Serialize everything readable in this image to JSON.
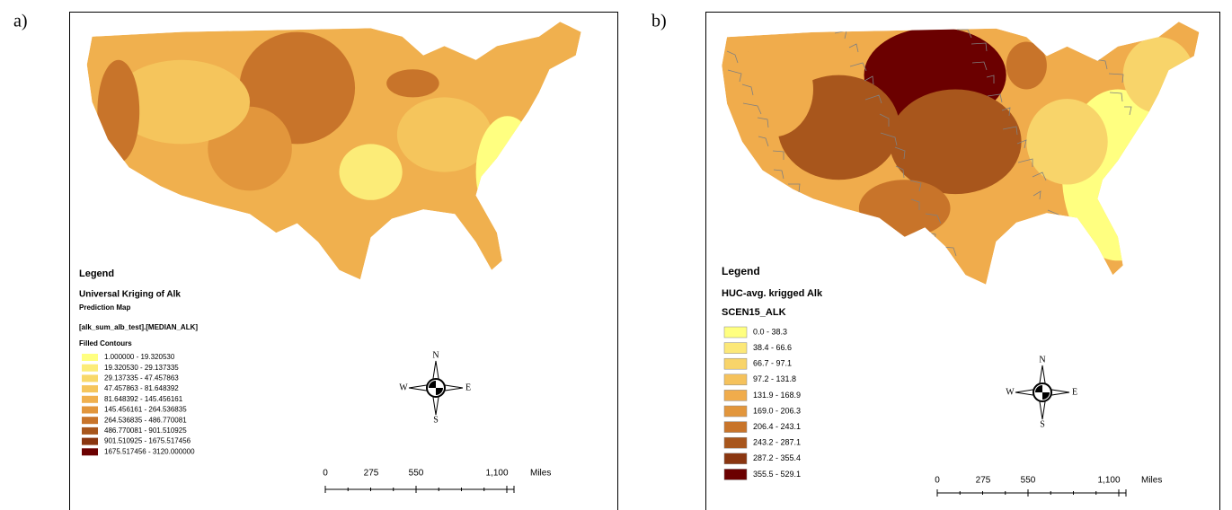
{
  "panels": [
    {
      "label": "a)",
      "legend": {
        "title": "Legend",
        "layer": "Universal Kriging of Alk",
        "subtitle": "Prediction Map",
        "field": "[alk_sum_alb_test].[MEDIAN_ALK]",
        "group": "Filled Contours",
        "classes": [
          {
            "label": "1.000000 - 19.320530",
            "color": "#ffff80"
          },
          {
            "label": "19.320530 - 29.137335",
            "color": "#fcec78"
          },
          {
            "label": "29.137335 - 47.457863",
            "color": "#f8d86a"
          },
          {
            "label": "47.457863 - 81.648392",
            "color": "#f5c55c"
          },
          {
            "label": "81.648392 - 145.456161",
            "color": "#f0b04e"
          },
          {
            "label": "145.456161 - 264.536835",
            "color": "#e2963c"
          },
          {
            "label": "264.536835 - 486.770081",
            "color": "#c8742a"
          },
          {
            "label": "486.770081 - 901.510925",
            "color": "#a8561c"
          },
          {
            "label": "901.510925 - 1675.517456",
            "color": "#8a3610"
          },
          {
            "label": "1675.517456 - 3120.000000",
            "color": "#6b0000"
          }
        ]
      },
      "compass": {
        "n": "N",
        "e": "E",
        "s": "S",
        "w": "W"
      },
      "scale_bar": {
        "ticks": [
          "0",
          "275",
          "550",
          "1,100"
        ],
        "unit": "Miles"
      }
    },
    {
      "label": "b)",
      "legend": {
        "title": "Legend",
        "layer": "HUC-avg. krigged Alk",
        "subtitle": "SCEN15_ALK",
        "classes": [
          {
            "label": "0.0 - 38.3",
            "color": "#ffff80"
          },
          {
            "label": "38.4 - 66.6",
            "color": "#fce878"
          },
          {
            "label": "66.7 - 97.1",
            "color": "#f8d46a"
          },
          {
            "label": "97.2 - 131.8",
            "color": "#f5c25c"
          },
          {
            "label": "131.9 - 168.9",
            "color": "#f0ac4c"
          },
          {
            "label": "169.0 - 206.3",
            "color": "#e2963c"
          },
          {
            "label": "206.4 - 243.1",
            "color": "#c8742a"
          },
          {
            "label": "243.2 - 287.1",
            "color": "#a8561c"
          },
          {
            "label": "287.2 - 355.4",
            "color": "#8a3610"
          },
          {
            "label": "355.5 - 529.1",
            "color": "#6b0000"
          }
        ]
      },
      "compass": {
        "n": "N",
        "e": "E",
        "s": "S",
        "w": "W"
      },
      "scale_bar": {
        "ticks": [
          "0",
          "275",
          "550",
          "1,100"
        ],
        "unit": "Miles"
      }
    }
  ]
}
